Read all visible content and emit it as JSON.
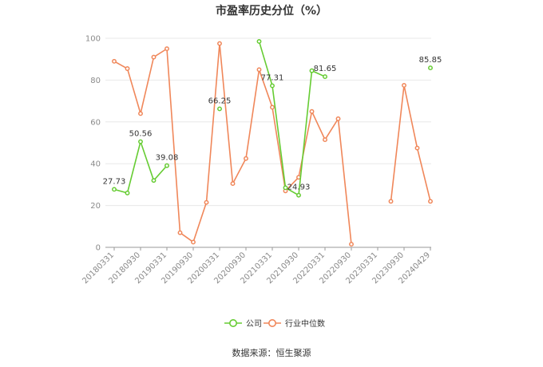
{
  "chart_data": {
    "type": "line",
    "title": "市盈率历史分位（%）",
    "xlabel": "",
    "ylabel": "",
    "ylim": [
      0,
      100
    ],
    "yticks": [
      0,
      20,
      40,
      60,
      80,
      100
    ],
    "grid": true,
    "legend_position": "bottom",
    "x_tick_labels": [
      "20180331",
      "20180930",
      "20190331",
      "20190930",
      "20200331",
      "20200930",
      "20210331",
      "20210930",
      "20220331",
      "20220930",
      "20230331",
      "20230930",
      "20240429"
    ],
    "series": [
      {
        "name": "公司",
        "color": "#66cc33",
        "values": [
          27.73,
          26.0,
          50.56,
          32.0,
          39.08,
          null,
          null,
          null,
          66.25,
          null,
          null,
          98.5,
          77.31,
          28.5,
          24.93,
          84.5,
          81.65,
          null,
          null,
          null,
          null,
          null,
          null,
          null,
          85.85
        ],
        "labeled_points": [
          {
            "index": 0,
            "text": "27.73"
          },
          {
            "index": 2,
            "text": "50.56"
          },
          {
            "index": 4,
            "text": "39.08"
          },
          {
            "index": 8,
            "text": "66.25"
          },
          {
            "index": 12,
            "text": "77.31"
          },
          {
            "index": 14,
            "text": "24.93"
          },
          {
            "index": 16,
            "text": "81.65"
          },
          {
            "index": 24,
            "text": "85.85"
          }
        ]
      },
      {
        "name": "行业中位数",
        "color": "#f0875a",
        "values": [
          89.0,
          85.5,
          64.0,
          91.0,
          95.0,
          7.0,
          2.5,
          21.5,
          97.5,
          30.5,
          42.5,
          85.0,
          67.0,
          27.0,
          33.5,
          65.0,
          51.5,
          61.5,
          1.5,
          null,
          null,
          22.0,
          77.5,
          47.5,
          22.0
        ]
      }
    ]
  },
  "source_text": "数据来源：恒生聚源"
}
